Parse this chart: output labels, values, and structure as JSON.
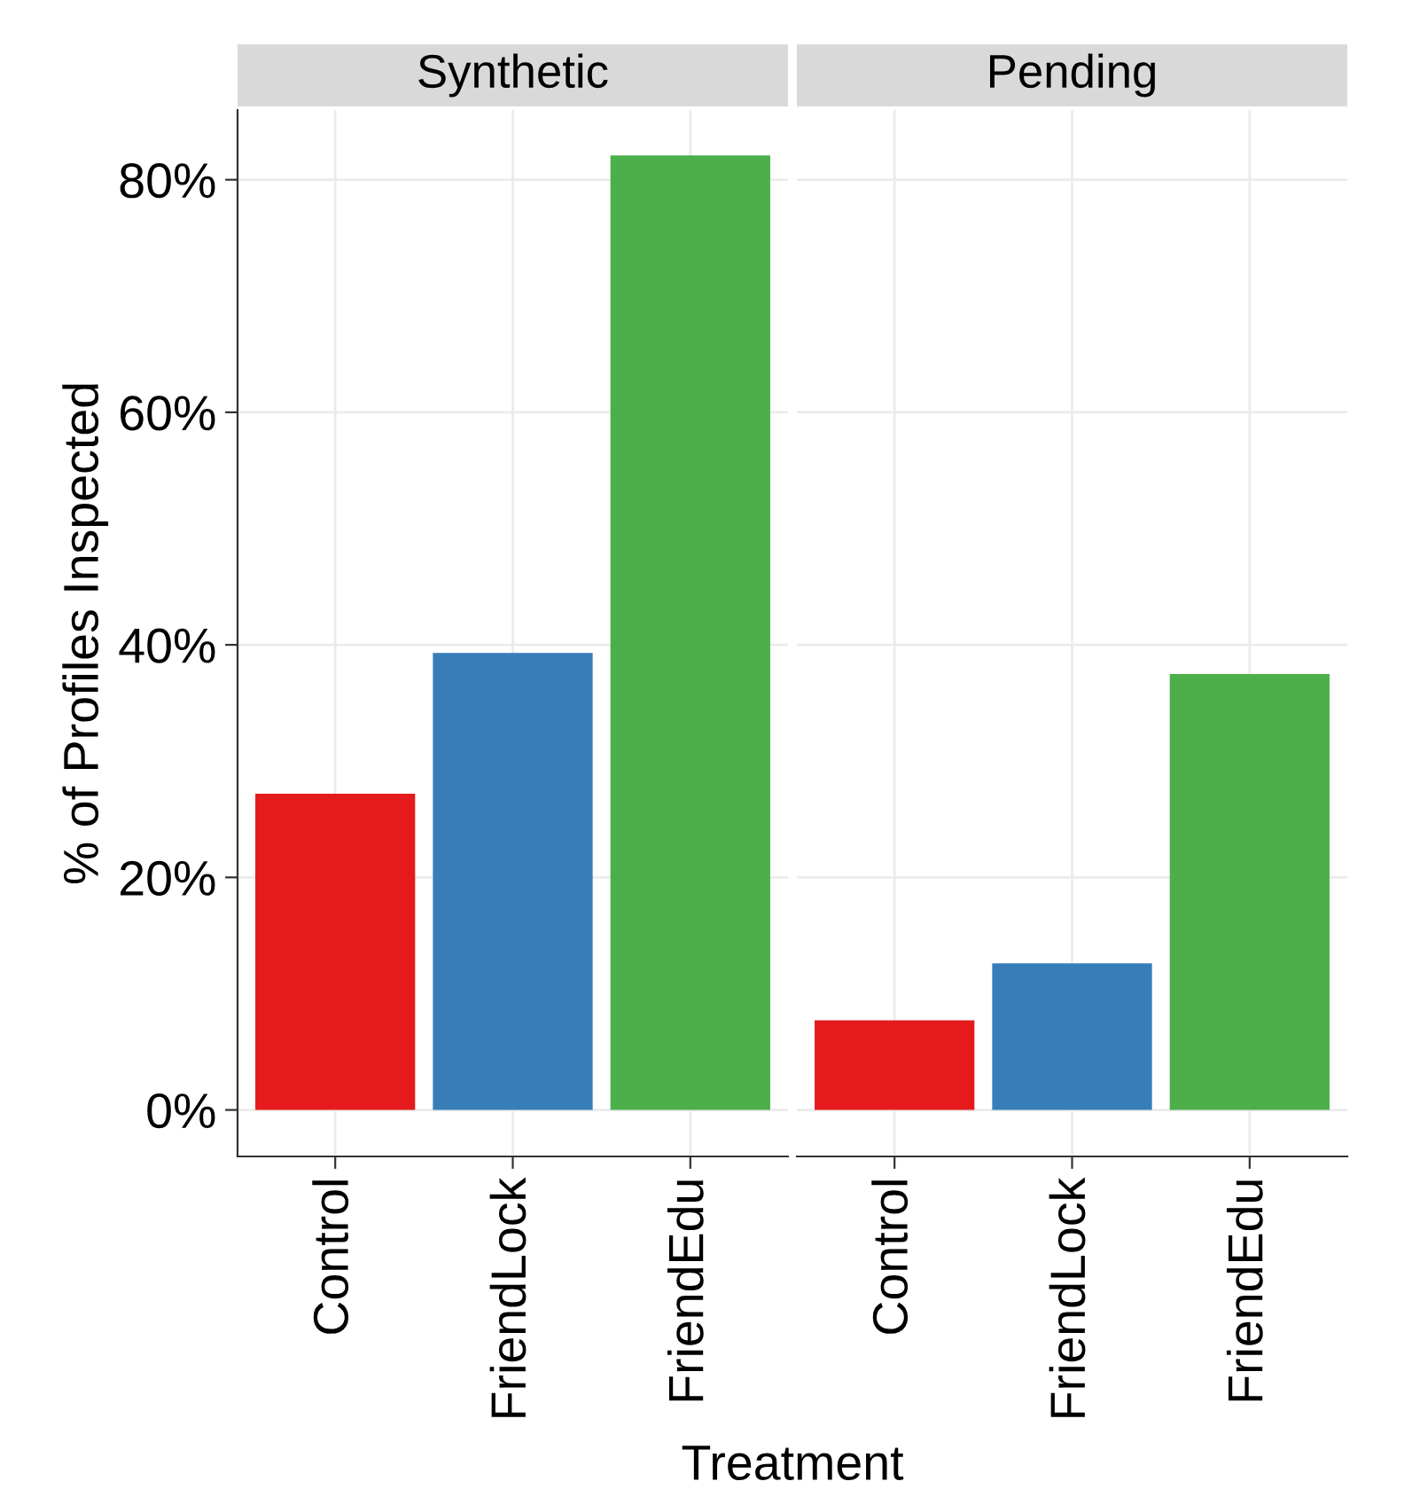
{
  "chart_data": [
    {
      "type": "bar",
      "title": "Synthetic",
      "ylabel": "% of Profiles Inspected",
      "xlabel": "Treatment",
      "categories": [
        "Control",
        "FriendLock",
        "FriendEdu"
      ],
      "values": [
        27.2,
        39.3,
        82.1
      ],
      "colors": [
        "#e41a1c",
        "#377eb8",
        "#4daf4a"
      ],
      "ylim": [
        -4,
        86
      ],
      "yticks": [
        {
          "value": 0,
          "label": "0%"
        },
        {
          "value": 20,
          "label": "20%"
        },
        {
          "value": 40,
          "label": "40%"
        },
        {
          "value": 60,
          "label": "60%"
        },
        {
          "value": 80,
          "label": "80%"
        }
      ],
      "grid": true
    },
    {
      "type": "bar",
      "title": "Pending",
      "categories": [
        "Control",
        "FriendLock",
        "FriendEdu"
      ],
      "values": [
        7.7,
        12.6,
        37.5
      ],
      "colors": [
        "#e41a1c",
        "#377eb8",
        "#4daf4a"
      ],
      "ylim": [
        -4,
        86
      ],
      "yticks": [
        {
          "value": 0,
          "label": null
        },
        {
          "value": 20,
          "label": null
        },
        {
          "value": 40,
          "label": null
        },
        {
          "value": 60,
          "label": null
        },
        {
          "value": 80,
          "label": null
        }
      ],
      "grid": true,
      "tick_labels": "x"
    }
  ]
}
